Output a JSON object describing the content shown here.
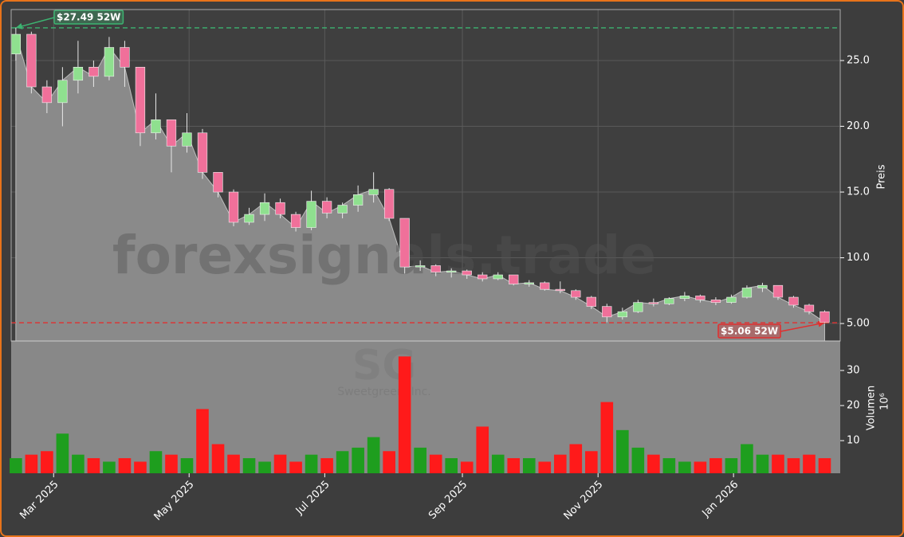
{
  "chart_data": {
    "type": "candlestick",
    "watermark": "forexsignals.trade",
    "symbol": "SG",
    "company": "Sweetgreen, Inc.",
    "y_label": "Preis",
    "y2_label": "Volumen",
    "y2_scale": "10⁶",
    "xlim": [
      -0.3,
      53
    ],
    "xticks": [
      {
        "value": 2.43,
        "label": "Mar 2025"
      },
      {
        "value": 11.14,
        "label": "May 2025"
      },
      {
        "value": 19.86,
        "label": "Jul 2025"
      },
      {
        "value": 28.71,
        "label": "Sep 2025"
      },
      {
        "value": 37.43,
        "label": "Nov 2025"
      },
      {
        "value": 46.14,
        "label": "Jan 2026"
      }
    ],
    "ylim": [
      3.67,
      28.88
    ],
    "yticks": [
      {
        "value": 5,
        "label": "5.00"
      },
      {
        "value": 10,
        "label": "10.0"
      },
      {
        "value": 15,
        "label": "15.0"
      },
      {
        "value": 20,
        "label": "20.0"
      },
      {
        "value": 25,
        "label": "25.0"
      }
    ],
    "y2lim": [
      0.7,
      38.4
    ],
    "y2ticks": [
      10,
      20,
      30
    ],
    "grid": true,
    "up_color": "#8fe08f",
    "down_color": "#f0709a",
    "volume_up_color": "#1e9e1e",
    "volume_down_color": "#ff1a1a",
    "open": [
      25.5,
      27,
      23,
      21.8,
      23.5,
      24.5,
      23.8,
      26,
      24.5,
      19.5,
      20.5,
      18.5,
      19.5,
      16.5,
      15,
      12.7,
      13.3,
      14.2,
      13.3,
      12.3,
      14.3,
      13.4,
      14,
      14.8,
      15.2,
      13,
      9.3,
      9.4,
      8.9,
      9,
      8.7,
      8.4,
      8.7,
      8,
      8.1,
      7.6,
      7.5,
      7,
      6.3,
      5.5,
      5.9,
      6.6,
      6.5,
      6.9,
      7.1,
      6.8,
      6.6,
      7,
      7.7,
      7.9,
      7,
      6.4,
      5.9
    ],
    "high": [
      27.49,
      27.2,
      23.5,
      24.5,
      26.5,
      25,
      26.8,
      26.5,
      24.5,
      22.5,
      20.5,
      21,
      19.8,
      16.5,
      15.2,
      13.8,
      14.9,
      14.5,
      13.5,
      15.1,
      14.6,
      14.2,
      15.5,
      16.5,
      15.3,
      13,
      9.8,
      9.5,
      9.2,
      9.1,
      8.9,
      8.9,
      8.7,
      8.3,
      8.2,
      8.2,
      7.6,
      7.1,
      6.5,
      6.2,
      6.8,
      6.9,
      7,
      7.4,
      7.2,
      7,
      7.2,
      7.9,
      8.1,
      7.9,
      7.1,
      6.5,
      6
    ],
    "low": [
      25,
      22.5,
      21,
      20,
      22.5,
      23,
      23.5,
      23,
      18.5,
      19,
      16.5,
      18,
      16,
      14.6,
      12.4,
      12.5,
      12.8,
      13,
      12,
      12.1,
      13,
      13,
      13.5,
      14.2,
      12.8,
      8.8,
      9,
      8.6,
      8.5,
      8.4,
      8.2,
      8.3,
      7.9,
      7.8,
      7.5,
      7.3,
      6.8,
      6.1,
      5.1,
      5.3,
      5.8,
      6.3,
      6.4,
      6.7,
      6.6,
      6.4,
      6.5,
      6.9,
      7.4,
      6.8,
      6.2,
      5.7,
      5.06
    ],
    "close": [
      27,
      23,
      21.8,
      23.5,
      24.5,
      23.8,
      26,
      24.5,
      19.5,
      20.5,
      18.5,
      19.5,
      16.5,
      15,
      12.7,
      13.3,
      14.2,
      13.3,
      12.3,
      14.3,
      13.4,
      14,
      14.8,
      15.2,
      13,
      9.3,
      9.4,
      8.9,
      9,
      8.7,
      8.4,
      8.7,
      8,
      8.1,
      7.6,
      7.5,
      7,
      6.3,
      5.5,
      5.9,
      6.6,
      6.5,
      6.9,
      7.1,
      6.8,
      6.6,
      7,
      7.7,
      7.9,
      7,
      6.4,
      5.9,
      5.1
    ],
    "volume": [
      5,
      6,
      7,
      12,
      6,
      5,
      4,
      5,
      4,
      7,
      6,
      5,
      19,
      9,
      6,
      5,
      4,
      6,
      4,
      6,
      5,
      7,
      8,
      11,
      7,
      34,
      8,
      6,
      5,
      4,
      14,
      6,
      5,
      5,
      4,
      6,
      9,
      7,
      21,
      13,
      8,
      6,
      5,
      4,
      4,
      5,
      5,
      9,
      6,
      6,
      5,
      6,
      5
    ],
    "high_52w": {
      "value": 27.49,
      "label": "$27.49 52W",
      "color": "#3cb371"
    },
    "low_52w": {
      "value": 5.06,
      "label": "$5.06 52W",
      "color": "#e03030"
    }
  }
}
